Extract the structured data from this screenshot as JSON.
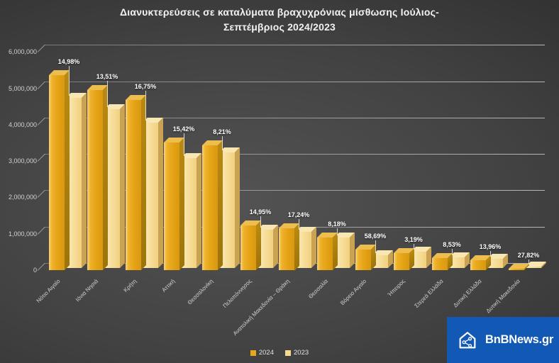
{
  "title": {
    "line1": "Διανυκτερεύσεις σε καταλύματα βραχυχρόνιας μίσθωσης Ιούλιος-",
    "line2": "Σεπτέμβριος 2024/2023"
  },
  "chart_data": {
    "type": "bar",
    "title": "Διανυκτερεύσεις σε καταλύματα βραχυχρόνιας μίσθωσης Ιούλιος-Σεπτέμβριος 2024/2023",
    "categories": [
      "Νότιο Αιγαίο",
      "Ιόνια Νησιά",
      "Κρήτη",
      "Αττική",
      "Θεσσαλονίκη",
      "Πελοπόννησος",
      "Ανατολική Μακεδονία – Θράκη",
      "Θεσσαλία",
      "Βόρειο Αιγαίο",
      "Ήπειρος",
      "Στερεά Ελλάδα",
      "Δυτική Ελλάδα",
      "Δυτική Μακεδονία"
    ],
    "series": [
      {
        "name": "2024",
        "color": "#e7a71c",
        "values": [
          5370000,
          4960000,
          4670000,
          3500000,
          3440000,
          1220000,
          1160000,
          900000,
          570000,
          470000,
          325000,
          280000,
          46000
        ]
      },
      {
        "name": "2023",
        "color": "#f6da8e",
        "values": [
          4670000,
          4370000,
          4000000,
          3030000,
          3180000,
          1060000,
          990000,
          830000,
          360000,
          455000,
          300000,
          246000,
          36000
        ]
      }
    ],
    "pct_change_labels": [
      "14,98%",
      "13,51%",
      "16,75%",
      "15,42%",
      "8,21%",
      "14,95%",
      "17,24%",
      "8,18%",
      "58,69%",
      "3,19%",
      "8,53%",
      "13,96%",
      "27,82%"
    ],
    "ylim": [
      0,
      6000000
    ],
    "y_ticks": [
      "0",
      "1,000,000",
      "2,000,000",
      "3,000,000",
      "4,000,000",
      "5,000,000",
      "6,000,000"
    ],
    "grid": true,
    "legend_position": "bottom"
  },
  "legend": {
    "items": [
      {
        "label": "2024",
        "color": "#e7a71c"
      },
      {
        "label": "2023",
        "color": "#f6da8e"
      }
    ]
  },
  "logo": {
    "text": "BnBNews.gr",
    "bg_color": "#1259b5"
  }
}
